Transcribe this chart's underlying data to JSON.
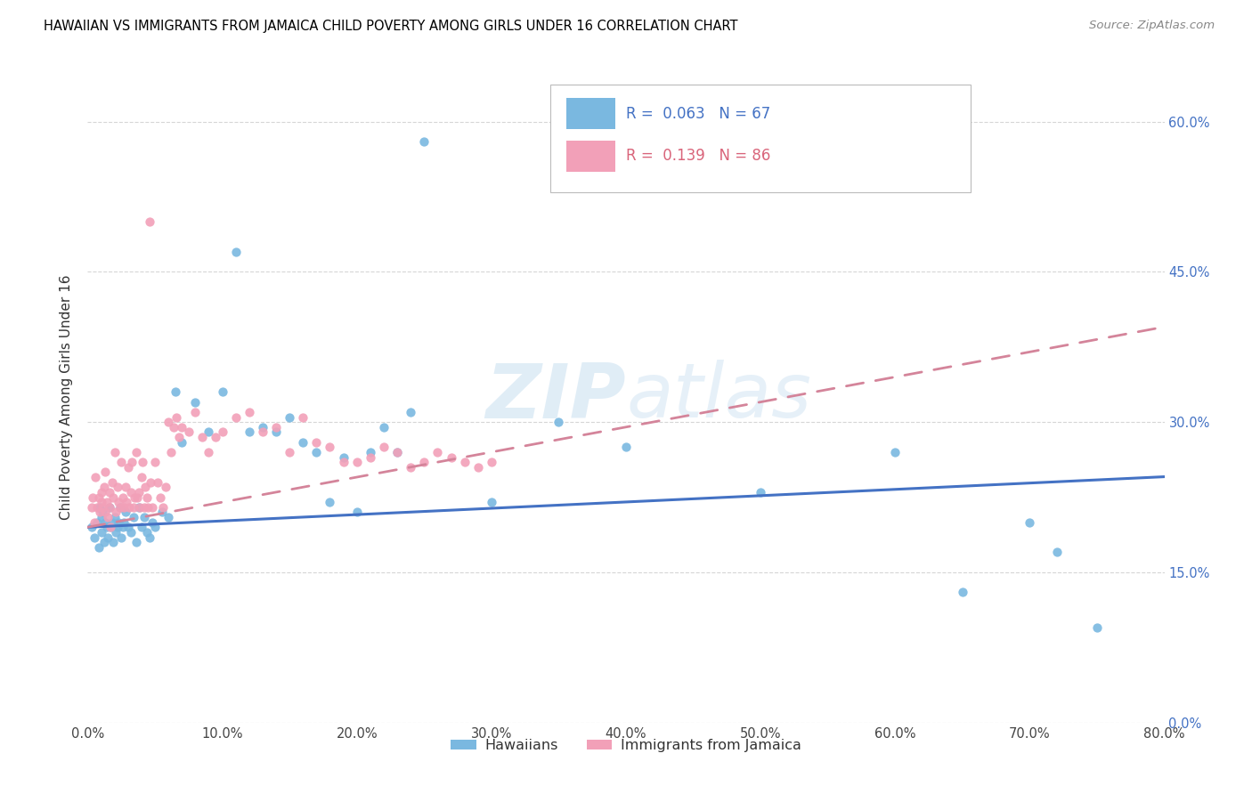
{
  "title": "HAWAIIAN VS IMMIGRANTS FROM JAMAICA CHILD POVERTY AMONG GIRLS UNDER 16 CORRELATION CHART",
  "source": "Source: ZipAtlas.com",
  "ylabel_label": "Child Poverty Among Girls Under 16",
  "legend_label1": "Hawaiians",
  "legend_label2": "Immigrants from Jamaica",
  "R1": "0.063",
  "N1": "67",
  "R2": "0.139",
  "N2": "86",
  "color_blue": "#7ab8e0",
  "color_pink": "#f2a0b8",
  "color_blue_text": "#4472c4",
  "color_pink_text": "#d9647a",
  "color_blue_line": "#4472c4",
  "color_pink_line": "#d4849a",
  "background_color": "#ffffff",
  "grid_color": "#cccccc",
  "xlim": [
    0.0,
    0.8
  ],
  "ylim": [
    0.0,
    0.65
  ],
  "x_ticks": [
    0.0,
    0.1,
    0.2,
    0.3,
    0.4,
    0.5,
    0.6,
    0.7,
    0.8
  ],
  "y_ticks": [
    0.0,
    0.15,
    0.3,
    0.45,
    0.6
  ],
  "haw_slope": 0.063,
  "haw_intercept": 0.195,
  "jam_slope": 0.25,
  "jam_intercept": 0.195,
  "haw_x": [
    0.003,
    0.005,
    0.007,
    0.008,
    0.009,
    0.01,
    0.01,
    0.011,
    0.012,
    0.013,
    0.014,
    0.015,
    0.016,
    0.017,
    0.018,
    0.019,
    0.02,
    0.021,
    0.022,
    0.023,
    0.024,
    0.025,
    0.026,
    0.027,
    0.028,
    0.03,
    0.032,
    0.034,
    0.036,
    0.038,
    0.04,
    0.042,
    0.044,
    0.046,
    0.048,
    0.05,
    0.055,
    0.06,
    0.065,
    0.07,
    0.08,
    0.09,
    0.1,
    0.11,
    0.12,
    0.13,
    0.14,
    0.15,
    0.16,
    0.17,
    0.18,
    0.19,
    0.2,
    0.21,
    0.22,
    0.23,
    0.24,
    0.25,
    0.3,
    0.35,
    0.4,
    0.5,
    0.6,
    0.65,
    0.7,
    0.72,
    0.75
  ],
  "haw_y": [
    0.195,
    0.185,
    0.2,
    0.175,
    0.215,
    0.19,
    0.205,
    0.21,
    0.18,
    0.2,
    0.195,
    0.185,
    0.215,
    0.195,
    0.2,
    0.18,
    0.205,
    0.19,
    0.195,
    0.2,
    0.215,
    0.185,
    0.195,
    0.2,
    0.21,
    0.195,
    0.19,
    0.205,
    0.18,
    0.215,
    0.195,
    0.205,
    0.19,
    0.185,
    0.2,
    0.195,
    0.21,
    0.205,
    0.33,
    0.28,
    0.32,
    0.29,
    0.33,
    0.47,
    0.29,
    0.295,
    0.29,
    0.305,
    0.28,
    0.27,
    0.22,
    0.265,
    0.21,
    0.27,
    0.295,
    0.27,
    0.31,
    0.58,
    0.22,
    0.3,
    0.275,
    0.23,
    0.27,
    0.13,
    0.2,
    0.17,
    0.095
  ],
  "jam_x": [
    0.003,
    0.004,
    0.005,
    0.006,
    0.007,
    0.008,
    0.009,
    0.01,
    0.01,
    0.011,
    0.012,
    0.013,
    0.013,
    0.014,
    0.015,
    0.016,
    0.016,
    0.017,
    0.018,
    0.019,
    0.02,
    0.021,
    0.022,
    0.023,
    0.024,
    0.025,
    0.026,
    0.027,
    0.028,
    0.029,
    0.03,
    0.031,
    0.032,
    0.033,
    0.034,
    0.035,
    0.036,
    0.037,
    0.038,
    0.039,
    0.04,
    0.041,
    0.042,
    0.043,
    0.044,
    0.045,
    0.046,
    0.047,
    0.048,
    0.05,
    0.052,
    0.054,
    0.056,
    0.058,
    0.06,
    0.062,
    0.064,
    0.066,
    0.068,
    0.07,
    0.075,
    0.08,
    0.085,
    0.09,
    0.095,
    0.1,
    0.11,
    0.12,
    0.13,
    0.14,
    0.15,
    0.16,
    0.17,
    0.18,
    0.19,
    0.2,
    0.21,
    0.22,
    0.23,
    0.24,
    0.25,
    0.26,
    0.27,
    0.28,
    0.29,
    0.3
  ],
  "jam_y": [
    0.215,
    0.225,
    0.2,
    0.245,
    0.215,
    0.225,
    0.21,
    0.23,
    0.22,
    0.215,
    0.235,
    0.21,
    0.25,
    0.22,
    0.205,
    0.23,
    0.215,
    0.195,
    0.24,
    0.225,
    0.27,
    0.21,
    0.235,
    0.22,
    0.215,
    0.26,
    0.225,
    0.215,
    0.235,
    0.22,
    0.255,
    0.215,
    0.23,
    0.26,
    0.215,
    0.225,
    0.27,
    0.225,
    0.23,
    0.215,
    0.245,
    0.26,
    0.215,
    0.235,
    0.225,
    0.215,
    0.5,
    0.24,
    0.215,
    0.26,
    0.24,
    0.225,
    0.215,
    0.235,
    0.3,
    0.27,
    0.295,
    0.305,
    0.285,
    0.295,
    0.29,
    0.31,
    0.285,
    0.27,
    0.285,
    0.29,
    0.305,
    0.31,
    0.29,
    0.295,
    0.27,
    0.305,
    0.28,
    0.275,
    0.26,
    0.26,
    0.265,
    0.275,
    0.27,
    0.255,
    0.26,
    0.27,
    0.265,
    0.26,
    0.255,
    0.26
  ]
}
